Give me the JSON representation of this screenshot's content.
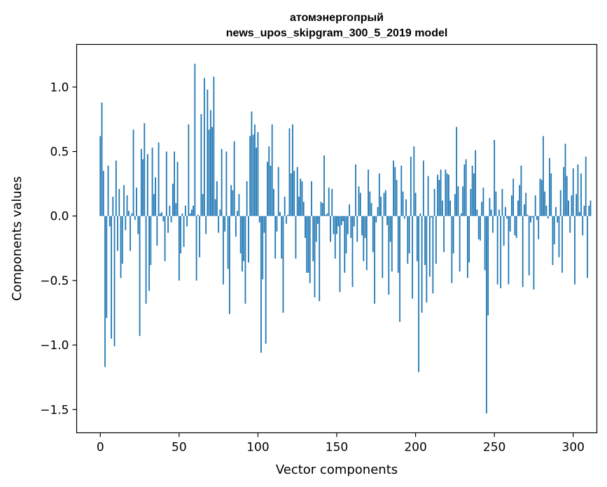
{
  "chart_data": {
    "type": "bar",
    "title_line1": "атомэнергопрый",
    "title_line2": "news_upos_skipgram_300_5_2019 model",
    "xlabel": "Vector components",
    "ylabel": "Components values",
    "xlim": [
      -15,
      315
    ],
    "ylim": [
      -1.68,
      1.33
    ],
    "xticks": [
      0,
      50,
      100,
      150,
      200,
      250,
      300
    ],
    "xtick_labels": [
      "0",
      "50",
      "100",
      "150",
      "200",
      "250",
      "300"
    ],
    "yticks": [
      1.0,
      0.5,
      0.0,
      -0.5,
      -1.0,
      -1.5
    ],
    "ytick_labels": [
      "1.0",
      "0.5",
      "0.0",
      "−0.5",
      "−1.0",
      "−1.5"
    ],
    "bar_color": "#1f77b4",
    "grid": false,
    "values": [
      0.62,
      0.88,
      0.35,
      -1.17,
      -0.79,
      0.39,
      -0.08,
      -0.95,
      0.15,
      -1.01,
      0.43,
      -0.27,
      0.21,
      -0.48,
      -0.37,
      0.24,
      -0.11,
      0.16,
      0.04,
      -0.27,
      0.02,
      0.67,
      -0.03,
      0.22,
      -0.14,
      -0.93,
      0.52,
      0.44,
      0.72,
      -0.68,
      0.48,
      -0.58,
      -0.38,
      0.53,
      0.17,
      0.3,
      -0.23,
      0.57,
      0.02,
      0.03,
      -0.04,
      -0.35,
      0.5,
      -0.13,
      0.08,
      -0.05,
      0.25,
      0.5,
      0.1,
      0.42,
      -0.5,
      -0.29,
      0.02,
      -0.24,
      0.08,
      -0.08,
      0.71,
      0.02,
      0.05,
      0.08,
      1.18,
      -0.5,
      0.01,
      -0.32,
      0.79,
      0.17,
      1.07,
      -0.14,
      0.98,
      0.67,
      0.82,
      0.69,
      1.08,
      0.13,
      0.27,
      -0.13,
      0.05,
      0.52,
      -0.53,
      -0.12,
      0.5,
      -0.41,
      -0.76,
      0.24,
      0.2,
      0.58,
      -0.16,
      0.04,
      0.17,
      -0.29,
      -0.43,
      -0.35,
      -0.68,
      0.27,
      -0.36,
      0.62,
      0.81,
      0.63,
      0.71,
      0.53,
      0.65,
      -0.05,
      -1.06,
      -0.49,
      -0.13,
      -0.99,
      0.42,
      0.54,
      0.39,
      0.71,
      0.21,
      -0.33,
      -0.12,
      0.38,
      0.03,
      -0.33,
      -0.75,
      0.15,
      -0.06,
      0.01,
      0.68,
      0.33,
      0.71,
      0.35,
      -0.33,
      0.38,
      0.15,
      0.29,
      0.27,
      0.11,
      -0.17,
      -0.44,
      -0.44,
      -0.52,
      0.27,
      -0.35,
      -0.63,
      -0.2,
      -0.06,
      -0.66,
      0.11,
      0.1,
      0.47,
      0.01,
      0.02,
      0.22,
      -0.2,
      0.21,
      -0.14,
      -0.33,
      -0.14,
      -0.08,
      -0.59,
      -0.07,
      -0.04,
      -0.44,
      -0.29,
      -0.14,
      0.09,
      -0.17,
      -0.55,
      -0.08,
      0.4,
      -0.2,
      0.23,
      0.18,
      -0.15,
      -0.35,
      -0.17,
      -0.42,
      0.36,
      0.19,
      0.1,
      -0.28,
      -0.68,
      -0.05,
      0.07,
      0.33,
      0.15,
      -0.48,
      0.18,
      0.2,
      -0.07,
      -0.61,
      -0.2,
      -0.43,
      0.43,
      0.38,
      0.28,
      -0.44,
      -0.82,
      0.39,
      0.19,
      -0.02,
      0.13,
      -0.37,
      -0.29,
      0.46,
      -0.64,
      0.54,
      0.18,
      -0.35,
      -1.21,
      0.02,
      -0.75,
      0.43,
      -0.38,
      -0.67,
      0.31,
      -0.47,
      -0.01,
      -0.6,
      0.21,
      -0.37,
      0.32,
      0.28,
      0.36,
      0.12,
      -0.28,
      0.36,
      0.33,
      0.32,
      0.12,
      -0.52,
      -0.29,
      0.17,
      0.69,
      0.23,
      -0.43,
      0.02,
      0.23,
      0.4,
      0.44,
      -0.48,
      -0.36,
      0.21,
      0.39,
      0.33,
      0.51,
      0.05,
      -0.18,
      -0.19,
      0.11,
      0.22,
      -0.42,
      -1.53,
      -0.77,
      0.14,
      0.05,
      -0.13,
      0.59,
      0.19,
      -0.53,
      0.05,
      -0.56,
      0.21,
      -0.23,
      0.07,
      -0.02,
      -0.53,
      -0.12,
      0.16,
      0.29,
      -0.15,
      -0.17,
      0.12,
      0.24,
      0.39,
      -0.55,
      0.09,
      0.18,
      0.01,
      -0.46,
      -0.05,
      -0.01,
      -0.57,
      0.16,
      -0.03,
      -0.18,
      0.29,
      0.28,
      0.62,
      0.19,
      0.08,
      -0.02,
      0.45,
      0.33,
      -0.38,
      -0.22,
      0.07,
      -0.05,
      -0.32,
      0.2,
      -0.44,
      0.38,
      0.56,
      0.31,
      0.12,
      -0.13,
      0.16,
      0.37,
      -0.53,
      0.17,
      0.4,
      0.03,
      0.33,
      -0.15,
      0.08,
      0.46,
      -0.48,
      0.08,
      0.12
    ]
  }
}
